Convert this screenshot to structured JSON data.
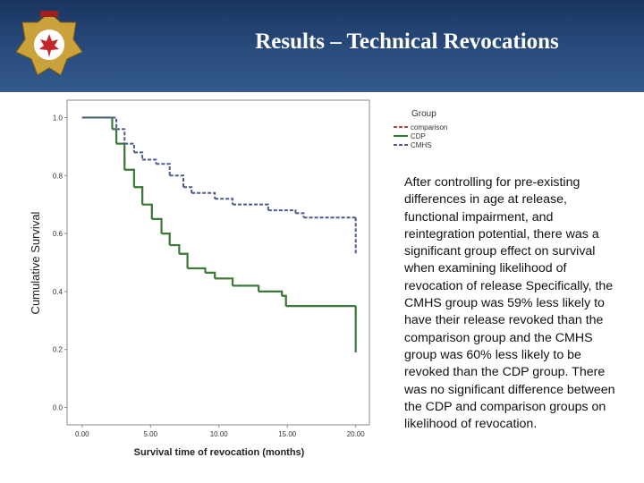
{
  "header": {
    "title": "Results – Technical Revocations"
  },
  "chart_data": {
    "type": "step",
    "ylabel": "Cumulative Survival",
    "xlabel": "Survival time of revocation (months)",
    "legend_title": "Group",
    "xlim": [
      -1.1,
      21
    ],
    "ylim": [
      -0.06,
      1.06
    ],
    "xticks": [
      {
        "value": 0,
        "label": "0.00"
      },
      {
        "value": 5,
        "label": "5.00"
      },
      {
        "value": 10,
        "label": "10.00"
      },
      {
        "value": 15,
        "label": "15.00"
      },
      {
        "value": 20,
        "label": "20.00"
      }
    ],
    "yticks": [
      {
        "value": 0,
        "label": "0.0"
      },
      0.2,
      0.4,
      0.6,
      0.8,
      {
        "value": 1,
        "label": "1.0"
      }
    ],
    "series": [
      {
        "name": "comparison",
        "color": "#b8453a",
        "dash": true,
        "x": [
          0,
          2.2,
          2.5,
          3.1,
          3.8,
          4.4,
          5.1,
          5.8,
          6.4,
          7.1,
          7.7,
          9.0,
          9.7,
          11,
          12.9,
          14.6,
          14.9,
          20,
          20
        ],
        "values": [
          1,
          0.96,
          0.91,
          0.82,
          0.76,
          0.7,
          0.65,
          0.6,
          0.56,
          0.53,
          0.48,
          0.465,
          0.445,
          0.42,
          0.4,
          0.385,
          0.35,
          0.35,
          0.31
        ]
      },
      {
        "name": "CDP",
        "color": "#3a7a3a",
        "dash": false,
        "x": [
          0,
          2.2,
          2.5,
          3.1,
          3.8,
          4.4,
          5.1,
          5.8,
          6.4,
          7.1,
          7.7,
          9.0,
          9.7,
          11,
          12.9,
          14.6,
          14.9,
          20,
          20
        ],
        "values": [
          1,
          0.96,
          0.91,
          0.82,
          0.76,
          0.7,
          0.65,
          0.6,
          0.56,
          0.53,
          0.48,
          0.465,
          0.445,
          0.42,
          0.4,
          0.385,
          0.35,
          0.35,
          0.19
        ]
      },
      {
        "name": "CMHS",
        "color": "#4a5a8a",
        "dash": true,
        "x": [
          0,
          1.8,
          2.5,
          3.1,
          3.8,
          4.4,
          5.4,
          6.4,
          7.4,
          8.0,
          9.7,
          11,
          13.6,
          15.6,
          16.2,
          20,
          20
        ],
        "values": [
          1,
          1,
          0.96,
          0.91,
          0.88,
          0.855,
          0.84,
          0.8,
          0.76,
          0.74,
          0.72,
          0.7,
          0.68,
          0.67,
          0.655,
          0.655,
          0.53
        ]
      }
    ]
  },
  "body": {
    "text": "After controlling for pre-existing differences in age at release, functional impairment, and reintegration potential, there was a significant group effect on survival when examining likelihood of revocation of release Specifically, the CMHS group was 59% less likely to have their release revoked than the comparison group and the CMHS group was 60% less likely to be revoked than the CDP group. There was no significant difference between the CDP and comparison groups on likelihood of revocation."
  }
}
